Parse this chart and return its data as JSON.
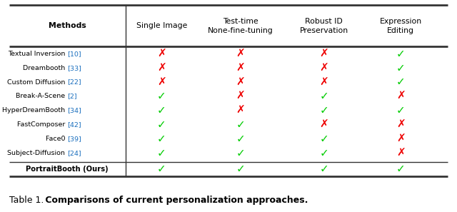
{
  "title_plain": "Table 1.",
  "title_bold": " Comparisons of current personalization approaches.",
  "col_headers": [
    "Methods",
    "Single Image",
    "Test-time\nNone-fine-tuning",
    "Robust ID\nPreservation",
    "Expression\nEditing"
  ],
  "rows": [
    {
      "method": "Textual Inversion ",
      "citation": "[10]",
      "values": [
        false,
        false,
        false,
        true
      ]
    },
    {
      "method": "Dreambooth ",
      "citation": "[33]",
      "values": [
        false,
        false,
        false,
        true
      ]
    },
    {
      "method": "Custom Diffusion ",
      "citation": "[22]",
      "values": [
        false,
        false,
        false,
        true
      ]
    },
    {
      "method": "Break-A-Scene ",
      "citation": "[2]",
      "values": [
        true,
        false,
        true,
        false
      ]
    },
    {
      "method": "HyperDreamBooth ",
      "citation": "[34]",
      "values": [
        true,
        false,
        true,
        true
      ]
    },
    {
      "method": "FastComposer ",
      "citation": "[42]",
      "values": [
        true,
        true,
        false,
        false
      ]
    },
    {
      "method": "Face0 ",
      "citation": "[39]",
      "values": [
        true,
        true,
        true,
        false
      ]
    },
    {
      "method": "Subject-Diffusion ",
      "citation": "[24]",
      "values": [
        true,
        true,
        true,
        false
      ]
    }
  ],
  "ours_row": {
    "method": "PortraitBooth (Ours)",
    "values": [
      true,
      true,
      true,
      true
    ]
  },
  "check_color": "#00cc00",
  "cross_color": "#ee0000",
  "ref_color": "#1a6fbe",
  "line_color": "#333333",
  "fig_width": 6.4,
  "fig_height": 2.97,
  "dpi": 100
}
